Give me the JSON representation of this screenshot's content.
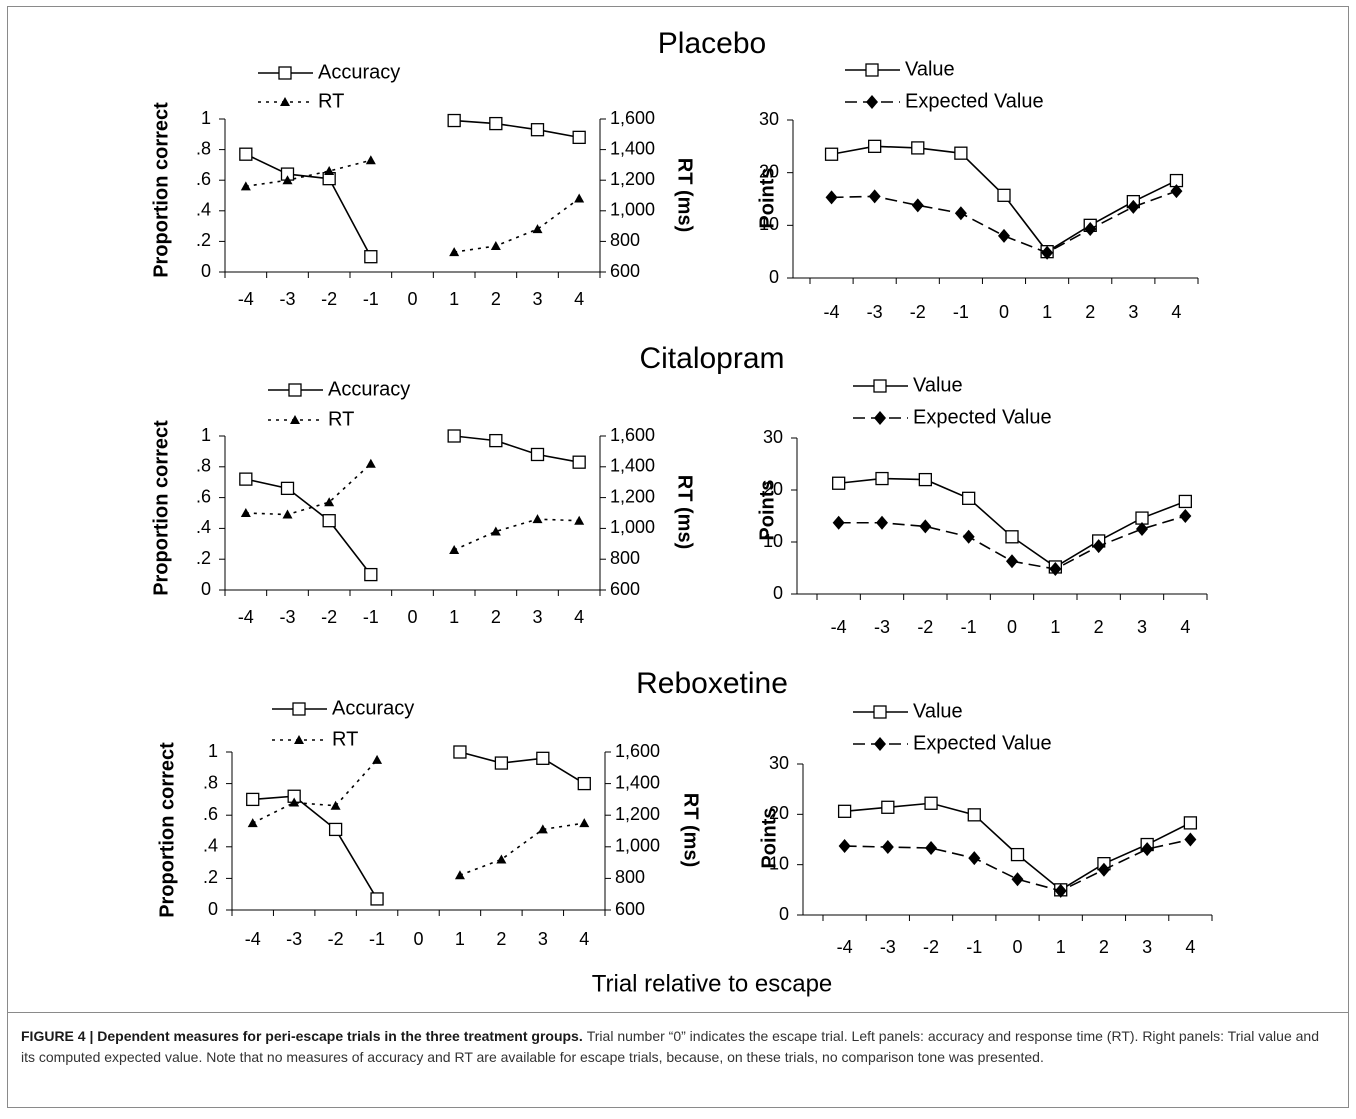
{
  "figure": {
    "xlabel": "Trial relative to escape",
    "caption": {
      "label": "FIGURE 4 | Dependent measures for peri-escape trials in the three treatment groups.",
      "text": "Trial number “0” indicates the escape trial. Left panels: accuracy and response time (RT). Right panels: Trial value and its computed expected value. Note that no measures of accuracy and RT are available for escape trials, because, on these trials, no comparison tone was presented."
    }
  },
  "chart_data": [
    {
      "type": "line",
      "title": "Placebo",
      "categories": [
        "-4",
        "-3",
        "-2",
        "-1",
        "0",
        "1",
        "2",
        "3",
        "4"
      ],
      "ylabel": "Proportion correct",
      "y2label": "RT (ms)",
      "ylim": [
        0,
        1
      ],
      "yticks": [
        0,
        {
          "value": 0.2,
          "label": ".2"
        },
        {
          "value": 0.4,
          "label": ".4"
        },
        {
          "value": 0.6,
          "label": ".6"
        },
        {
          "value": 0.8,
          "label": ".8"
        },
        1
      ],
      "y2lim": [
        600,
        1600
      ],
      "y2ticks": [
        600,
        800,
        {
          "value": 1000,
          "label": "1,000"
        },
        {
          "value": 1200,
          "label": "1,200"
        },
        {
          "value": 1400,
          "label": "1,400"
        },
        {
          "value": 1600,
          "label": "1,600"
        }
      ],
      "series": [
        {
          "name": "Accuracy",
          "color": "#000000",
          "marker": "square",
          "dash": "solid",
          "values": [
            0.77,
            0.64,
            0.61,
            0.1,
            null,
            0.99,
            0.97,
            0.93,
            0.88
          ]
        },
        {
          "name": "RT",
          "axis": "y2",
          "color": "#000000",
          "marker": "triangle",
          "dash": "dotted",
          "values": [
            1160,
            1200,
            1260,
            1330,
            null,
            730,
            770,
            880,
            1080
          ]
        }
      ]
    },
    {
      "type": "line",
      "categories": [
        "-4",
        "-3",
        "-2",
        "-1",
        "0",
        "1",
        "2",
        "3",
        "4"
      ],
      "ylabel": "Points",
      "ylim": [
        0,
        30
      ],
      "yticks": [
        0,
        10,
        20,
        30
      ],
      "series": [
        {
          "name": "Value",
          "color": "#000000",
          "marker": "square",
          "dash": "solid",
          "values": [
            23.5,
            25,
            24.7,
            23.7,
            15.7,
            5,
            10,
            14.5,
            18.5
          ]
        },
        {
          "name": "Expected Value",
          "color": "#000000",
          "marker": "diamond",
          "dash": "dashed",
          "values": [
            15.3,
            15.5,
            13.8,
            12.3,
            8,
            4.8,
            9.3,
            13.5,
            16.5
          ]
        }
      ]
    },
    {
      "type": "line",
      "title": "Citalopram",
      "categories": [
        "-4",
        "-3",
        "-2",
        "-1",
        "0",
        "1",
        "2",
        "3",
        "4"
      ],
      "ylabel": "Proportion correct",
      "y2label": "RT (ms)",
      "ylim": [
        0,
        1
      ],
      "yticks": [
        0,
        {
          "value": 0.2,
          "label": ".2"
        },
        {
          "value": 0.4,
          "label": ".4"
        },
        {
          "value": 0.6,
          "label": ".6"
        },
        {
          "value": 0.8,
          "label": ".8"
        },
        1
      ],
      "y2lim": [
        600,
        1600
      ],
      "y2ticks": [
        600,
        800,
        {
          "value": 1000,
          "label": "1,000"
        },
        {
          "value": 1200,
          "label": "1,200"
        },
        {
          "value": 1400,
          "label": "1,400"
        },
        {
          "value": 1600,
          "label": "1,600"
        }
      ],
      "series": [
        {
          "name": "Accuracy",
          "color": "#000000",
          "marker": "square",
          "dash": "solid",
          "values": [
            0.72,
            0.66,
            0.45,
            0.1,
            null,
            1.0,
            0.97,
            0.88,
            0.83
          ]
        },
        {
          "name": "RT",
          "axis": "y2",
          "color": "#000000",
          "marker": "triangle",
          "dash": "dotted",
          "values": [
            1100,
            1090,
            1170,
            1420,
            null,
            860,
            980,
            1060,
            1050
          ]
        }
      ]
    },
    {
      "type": "line",
      "categories": [
        "-4",
        "-3",
        "-2",
        "-1",
        "0",
        "1",
        "2",
        "3",
        "4"
      ],
      "ylabel": "Points",
      "ylim": [
        0,
        30
      ],
      "yticks": [
        0,
        10,
        20,
        30
      ],
      "series": [
        {
          "name": "Value",
          "color": "#000000",
          "marker": "square",
          "dash": "solid",
          "values": [
            21.3,
            22.2,
            22,
            18.4,
            11,
            5.2,
            10.2,
            14.6,
            17.8
          ]
        },
        {
          "name": "Expected Value",
          "color": "#000000",
          "marker": "diamond",
          "dash": "dashed",
          "values": [
            13.7,
            13.7,
            13,
            11,
            6.3,
            4.8,
            9.2,
            12.5,
            15
          ]
        }
      ]
    },
    {
      "type": "line",
      "title": "Reboxetine",
      "categories": [
        "-4",
        "-3",
        "-2",
        "-1",
        "0",
        "1",
        "2",
        "3",
        "4"
      ],
      "ylabel": "Proportion correct",
      "y2label": "RT (ms)",
      "ylim": [
        0,
        1
      ],
      "yticks": [
        0,
        {
          "value": 0.2,
          "label": ".2"
        },
        {
          "value": 0.4,
          "label": ".4"
        },
        {
          "value": 0.6,
          "label": ".6"
        },
        {
          "value": 0.8,
          "label": ".8"
        },
        1
      ],
      "y2lim": [
        600,
        1600
      ],
      "y2ticks": [
        600,
        800,
        {
          "value": 1000,
          "label": "1,000"
        },
        {
          "value": 1200,
          "label": "1,200"
        },
        {
          "value": 1400,
          "label": "1,400"
        },
        {
          "value": 1600,
          "label": "1,600"
        }
      ],
      "series": [
        {
          "name": "Accuracy",
          "color": "#000000",
          "marker": "square",
          "dash": "solid",
          "values": [
            0.7,
            0.72,
            0.51,
            0.07,
            null,
            1.0,
            0.93,
            0.96,
            0.8
          ]
        },
        {
          "name": "RT",
          "axis": "y2",
          "color": "#000000",
          "marker": "triangle",
          "dash": "dotted",
          "values": [
            1150,
            1280,
            1260,
            1550,
            null,
            820,
            920,
            1110,
            1150
          ]
        }
      ]
    },
    {
      "type": "line",
      "categories": [
        "-4",
        "-3",
        "-2",
        "-1",
        "0",
        "1",
        "2",
        "3",
        "4"
      ],
      "ylabel": "Points",
      "ylim": [
        0,
        30
      ],
      "yticks": [
        0,
        10,
        20,
        30
      ],
      "series": [
        {
          "name": "Value",
          "color": "#000000",
          "marker": "square",
          "dash": "solid",
          "values": [
            20.6,
            21.4,
            22.2,
            19.9,
            12,
            5,
            10.2,
            14,
            18.3
          ]
        },
        {
          "name": "Expected Value",
          "color": "#000000",
          "marker": "diamond",
          "dash": "dashed",
          "values": [
            13.7,
            13.5,
            13.3,
            11.3,
            7.1,
            4.8,
            9,
            13.1,
            15
          ]
        }
      ]
    }
  ]
}
